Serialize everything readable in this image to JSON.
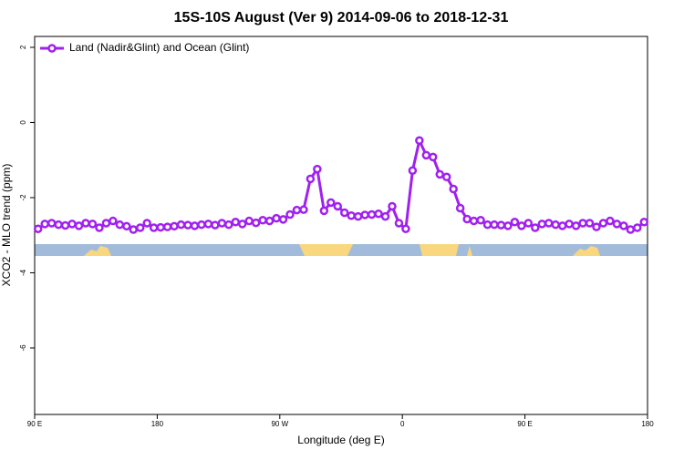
{
  "chart_data": {
    "type": "line",
    "title": "15S-10S August (Ver 9)   2014-09-06 to 2018-12-31",
    "x_label": "Longitude (deg E)",
    "y_label": "XCO2 - MLO trend (ppm)",
    "x": [
      92.5,
      97.5,
      102.5,
      107.5,
      112.5,
      117.5,
      122.5,
      127.5,
      132.5,
      137.5,
      142.5,
      147.5,
      152.5,
      157.5,
      162.5,
      167.5,
      172.5,
      177.5,
      182.5,
      187.5,
      192.5,
      197.5,
      202.5,
      207.5,
      212.5,
      217.5,
      222.5,
      227.5,
      232.5,
      237.5,
      242.5,
      247.5,
      252.5,
      257.5,
      262.5,
      267.5,
      272.5,
      277.5,
      282.5,
      287.5,
      292.5,
      297.5,
      302.5,
      307.5,
      312.5,
      317.5,
      322.5,
      327.5,
      332.5,
      337.5,
      342.5,
      347.5,
      352.5,
      357.5,
      362.5,
      367.5,
      372.5,
      377.5,
      382.5,
      387.5,
      392.5,
      397.5,
      402.5,
      407.5,
      412.5,
      417.5,
      422.5,
      427.5,
      432.5,
      437.5,
      442.5,
      447.5,
      452.5,
      457.5,
      462.5,
      467.5,
      472.5,
      477.5,
      482.5,
      487.5,
      492.5,
      497.5,
      502.5,
      507.5,
      512.5,
      517.5,
      522.5,
      527.5,
      532.5,
      537.5
    ],
    "series": [
      {
        "name": "Land (Nadir&Glint) and Ocean (Glint)",
        "color": "#a020f0",
        "values": [
          -2.83,
          -2.7,
          -2.68,
          -2.72,
          -2.74,
          -2.7,
          -2.75,
          -2.68,
          -2.7,
          -2.8,
          -2.68,
          -2.62,
          -2.72,
          -2.76,
          -2.85,
          -2.8,
          -2.68,
          -2.8,
          -2.79,
          -2.78,
          -2.76,
          -2.72,
          -2.73,
          -2.75,
          -2.72,
          -2.7,
          -2.73,
          -2.68,
          -2.72,
          -2.65,
          -2.7,
          -2.62,
          -2.67,
          -2.6,
          -2.62,
          -2.55,
          -2.58,
          -2.45,
          -2.33,
          -2.32,
          -1.5,
          -1.24,
          -2.35,
          -2.13,
          -2.23,
          -2.4,
          -2.48,
          -2.5,
          -2.46,
          -2.45,
          -2.43,
          -2.5,
          -2.23,
          -2.68,
          -2.83,
          -1.28,
          -0.48,
          -0.87,
          -0.92,
          -1.38,
          -1.45,
          -1.77,
          -2.28,
          -2.57,
          -2.62,
          -2.6,
          -2.72,
          -2.72,
          -2.73,
          -2.75,
          -2.65,
          -2.75,
          -2.68,
          -2.8,
          -2.7,
          -2.68,
          -2.72,
          -2.75,
          -2.7,
          -2.75,
          -2.68,
          -2.68,
          -2.78,
          -2.68,
          -2.62,
          -2.7,
          -2.75,
          -2.85,
          -2.8,
          -2.65
        ]
      }
    ],
    "xlim": [
      90,
      540
    ],
    "ylim": [
      -7.77,
      2.29
    ],
    "xticks": [
      {
        "value": 90,
        "label": "90 E"
      },
      180,
      {
        "value": 270,
        "label": "90 W"
      },
      {
        "value": 360,
        "label": "0"
      },
      {
        "value": 450,
        "label": "90 E"
      },
      {
        "value": 540,
        "label": "180"
      }
    ],
    "yticks": [
      2,
      0,
      -2,
      -4,
      -6
    ],
    "legend": "top-left"
  }
}
